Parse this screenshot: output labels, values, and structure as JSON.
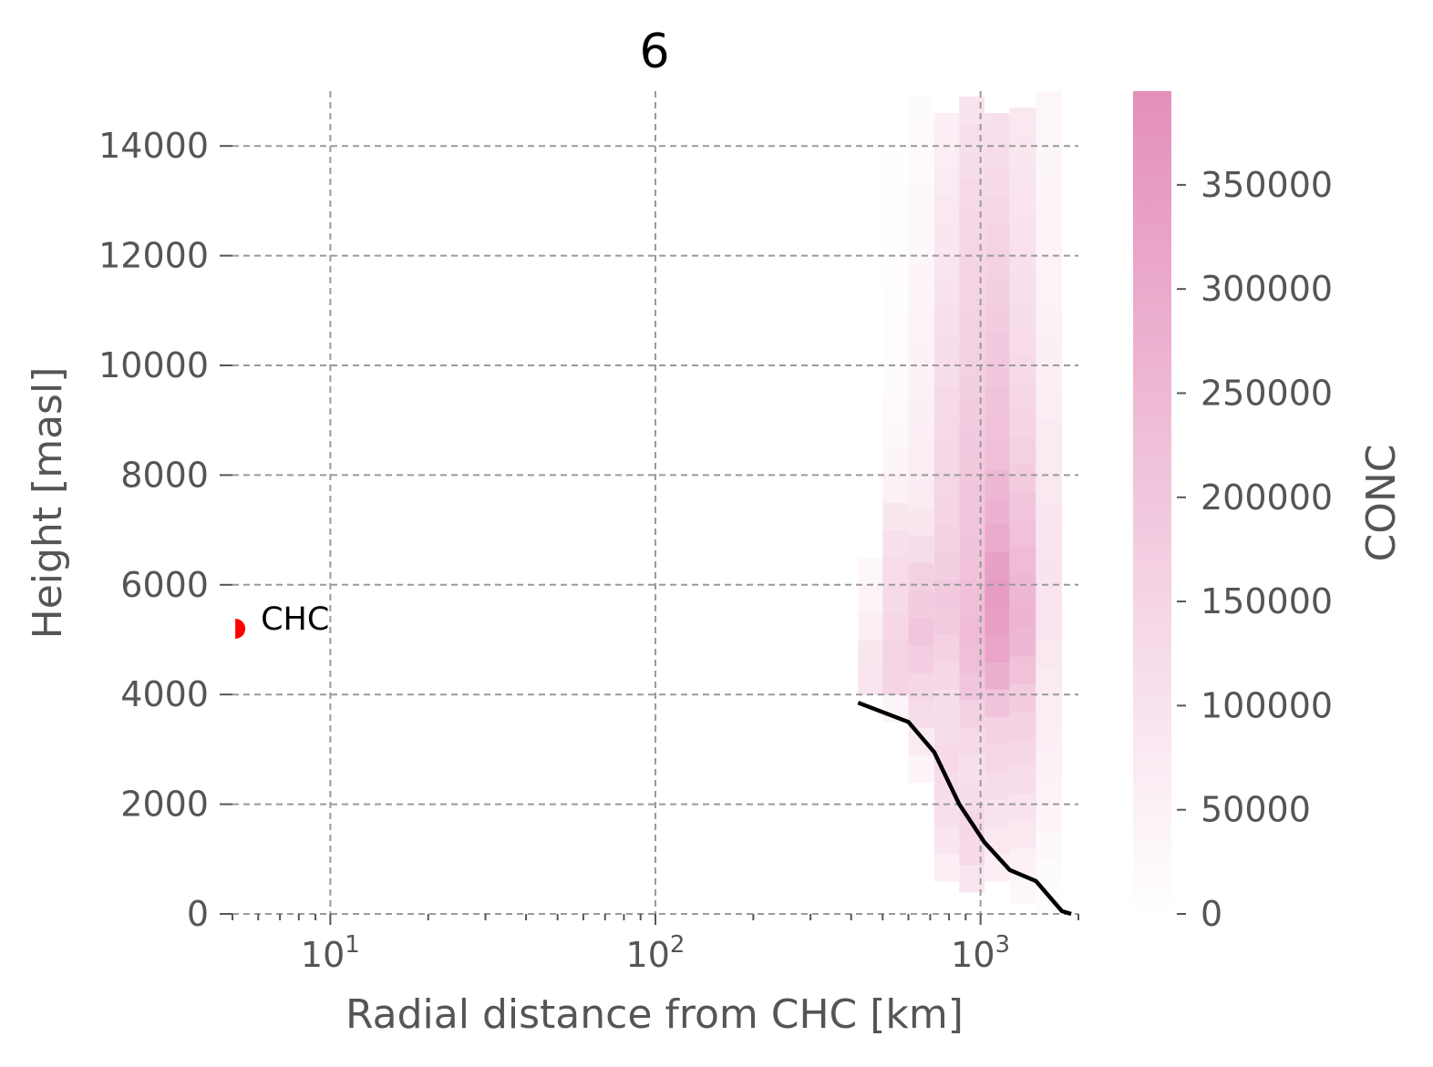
{
  "chart_data": {
    "type": "heatmap",
    "title": "6",
    "xlabel": "Radial distance from CHC [km]",
    "ylabel": "Height [masl]",
    "xscale": "log",
    "xlim": [
      5,
      2000
    ],
    "ylim": [
      0,
      15000
    ],
    "grid": true,
    "x_ticks": [
      {
        "value": 10,
        "base": "10",
        "exp": "1"
      },
      {
        "value": 100,
        "base": "10",
        "exp": "2"
      },
      {
        "value": 1000,
        "base": "10",
        "exp": "3"
      }
    ],
    "y_ticks": [
      0,
      2000,
      4000,
      6000,
      8000,
      10000,
      12000,
      14000
    ],
    "y_tick_labels": [
      "0",
      "2000",
      "4000",
      "6000",
      "8000",
      "10000",
      "12000",
      "14000"
    ],
    "colorbar": {
      "label": "CONC",
      "min": 0,
      "max": 395000,
      "low_color": "#ffffff",
      "high_color": "#e48fbb",
      "ticks": [
        0,
        50000,
        100000,
        150000,
        200000,
        250000,
        300000,
        350000
      ],
      "tick_labels": [
        "0",
        "50000",
        "100000",
        "150000",
        "200000",
        "250000",
        "300000",
        "350000"
      ]
    },
    "heatmap": {
      "x_edges_km": [
        420,
        500,
        600,
        720,
        860,
        1030,
        1230,
        1480,
        1780
      ],
      "y_bin_m": 500,
      "columns": [
        {
          "x_bin": 0,
          "y_start": 4000,
          "values": [
            95000,
            85000,
            60000,
            40000,
            30000
          ]
        },
        {
          "x_bin": 1,
          "y_start": 3500,
          "values": [
            40000,
            150000,
            155000,
            140000,
            130000,
            125000,
            110000,
            85000,
            50000,
            35000,
            25000,
            20000,
            15000,
            12000,
            10000,
            8000,
            6000,
            5000,
            4000,
            3000,
            2000,
            1500,
            1000
          ]
        },
        {
          "x_bin": 2,
          "y_start": 2400,
          "values": [
            40000,
            70000,
            120000,
            140000,
            175000,
            200000,
            180000,
            165000,
            120000,
            85000,
            70000,
            65000,
            60000,
            55000,
            50000,
            48000,
            45000,
            40000,
            35000,
            30000,
            27000,
            24000,
            20000,
            18000,
            15000
          ]
        },
        {
          "x_bin": 3,
          "y_start": 600,
          "values": [
            60000,
            90000,
            110000,
            120000,
            130000,
            120000,
            115000,
            140000,
            160000,
            185000,
            190000,
            170000,
            160000,
            150000,
            145000,
            140000,
            135000,
            130000,
            120000,
            115000,
            110000,
            100000,
            90000,
            85000,
            80000,
            70000,
            65000,
            60000
          ]
        },
        {
          "x_bin": 4,
          "y_start": 400,
          "values": [
            90000,
            130000,
            140000,
            120000,
            110000,
            130000,
            160000,
            200000,
            230000,
            240000,
            230000,
            220000,
            210000,
            205000,
            200000,
            195000,
            190000,
            180000,
            170000,
            165000,
            160000,
            155000,
            150000,
            145000,
            140000,
            130000,
            120000,
            110000,
            100000
          ]
        },
        {
          "x_bin": 5,
          "y_start": 600,
          "values": [
            60000,
            80000,
            100000,
            120000,
            140000,
            160000,
            210000,
            280000,
            320000,
            340000,
            350000,
            330000,
            300000,
            270000,
            250000,
            230000,
            220000,
            210000,
            200000,
            190000,
            180000,
            170000,
            160000,
            150000,
            140000,
            130000,
            120000,
            110000
          ]
        },
        {
          "x_bin": 6,
          "y_start": 200,
          "values": [
            30000,
            50000,
            80000,
            100000,
            120000,
            140000,
            160000,
            180000,
            220000,
            250000,
            260000,
            250000,
            240000,
            220000,
            200000,
            180000,
            165000,
            150000,
            140000,
            130000,
            120000,
            115000,
            110000,
            105000,
            100000,
            95000,
            90000,
            85000,
            80000
          ]
        },
        {
          "x_bin": 7,
          "y_start": 0,
          "values": [
            10000,
            15000,
            25000,
            35000,
            45000,
            50000,
            60000,
            65000,
            70000,
            80000,
            90000,
            95000,
            100000,
            95000,
            90000,
            80000,
            75000,
            70000,
            65000,
            60000,
            55000,
            50000,
            45000,
            42000,
            40000,
            38000,
            35000,
            32000,
            30000,
            28000
          ]
        }
      ]
    },
    "series": [
      {
        "type": "line",
        "color": "#000000",
        "x": [
          420,
          600,
          720,
          860,
          1030,
          1230,
          1480,
          1780,
          1900
        ],
        "y": [
          3850,
          3500,
          2950,
          2000,
          1300,
          800,
          600,
          50,
          0
        ]
      }
    ],
    "annotations": [
      {
        "text": "CHC",
        "x": 5.1,
        "y": 5200,
        "marker_color": "#ff0000"
      }
    ]
  }
}
